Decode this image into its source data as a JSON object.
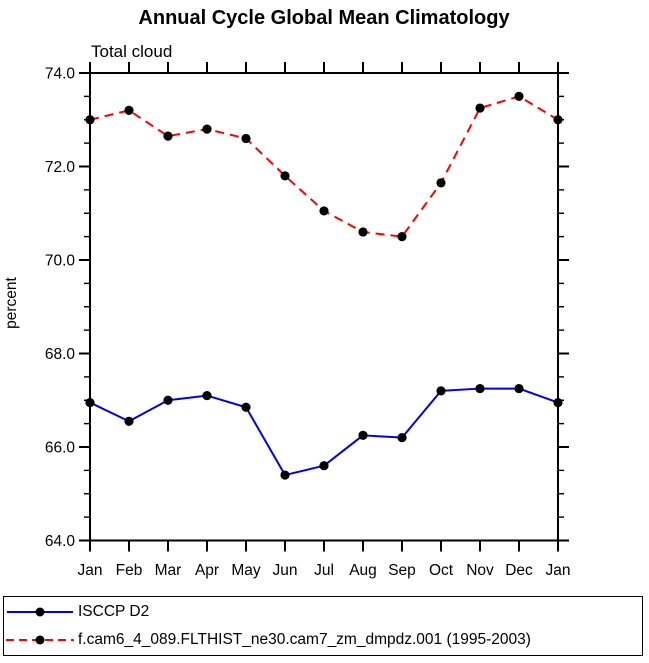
{
  "chart_data": {
    "type": "line",
    "title": "Annual Cycle Global Mean Climatology",
    "subtitle": "Total cloud",
    "xlabel": "",
    "ylabel": "percent",
    "categories": [
      "Jan",
      "Feb",
      "Mar",
      "Apr",
      "May",
      "Jun",
      "Jul",
      "Aug",
      "Sep",
      "Oct",
      "Nov",
      "Dec",
      "Jan"
    ],
    "ylim": [
      64.0,
      74.0
    ],
    "ytick_major_step": 2.0,
    "ytick_minor_step": 0.5,
    "ytick_labels": [
      "74.0",
      "72.0",
      "70.0",
      "68.0",
      "66.0",
      "64.0"
    ],
    "grid": false,
    "legend_position": "bottom",
    "series": [
      {
        "name": "ISCCP D2",
        "color": "#0000ee",
        "line_style": "solid",
        "marker": "circle",
        "marker_color": "#000000",
        "values": [
          66.95,
          66.55,
          67.0,
          67.1,
          66.85,
          65.4,
          65.6,
          66.25,
          66.2,
          67.2,
          67.25,
          67.25,
          66.95
        ]
      },
      {
        "name": "f.cam6_4_089.FLTHIST_ne30.cam7_zm_dmpdz.001 (1995-2003)",
        "color": "#ff0000",
        "line_style": "dashed",
        "marker": "circle",
        "marker_color": "#000000",
        "values": [
          73.0,
          73.2,
          72.65,
          72.8,
          72.6,
          71.8,
          71.05,
          70.6,
          70.5,
          71.65,
          73.25,
          73.5,
          73.0
        ]
      }
    ]
  },
  "colors": {
    "axis": "#000000",
    "background": "#ffffff"
  }
}
